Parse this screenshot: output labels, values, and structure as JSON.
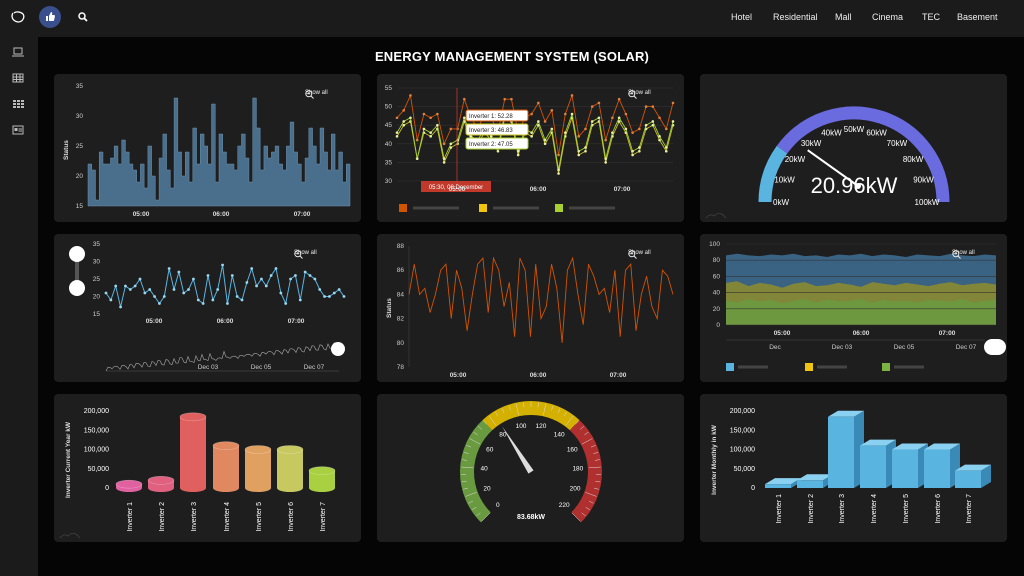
{
  "header": {
    "nav": [
      "Hotel",
      "Residential",
      "Mall",
      "Cinema",
      "TEC",
      "Basement"
    ]
  },
  "page_title": "ENERGY MANAGEMENT SYSTEM (SOLAR)",
  "show_all_label": "Show all",
  "colors": {
    "area_blue": "#4a6f8c",
    "line_orange": "#d35400",
    "inv_yellow": "#c8c020",
    "inv_green": "#a8d030",
    "gauge_blue": "#6b6be0",
    "gauge_lightblue": "#5ab4e0",
    "cyl_blue": "#5ab4e0"
  },
  "chart_data": [
    {
      "id": "status-area",
      "type": "area",
      "ylabel": "Status",
      "yticks": [
        "35",
        "30",
        "25",
        "20",
        "15"
      ],
      "ylim": [
        15,
        35
      ],
      "xticks": [
        "05:00",
        "06:00",
        "07:00"
      ],
      "values": [
        22,
        21,
        16,
        24,
        22,
        22,
        23,
        25,
        22,
        26,
        24,
        22,
        21,
        19,
        22,
        18,
        25,
        20,
        16,
        23,
        27,
        21,
        18,
        33,
        24,
        20,
        24,
        19,
        28,
        22,
        27,
        25,
        22,
        32,
        19,
        27,
        24,
        22,
        22,
        21,
        25,
        27,
        23,
        19,
        33,
        28,
        21,
        25,
        23,
        24,
        25,
        22,
        21,
        25,
        29,
        24,
        22,
        19,
        23,
        28,
        25,
        22,
        28,
        24,
        21,
        27,
        21,
        24,
        19,
        22
      ]
    },
    {
      "id": "inverters-line",
      "type": "line",
      "yticks": [
        "55",
        "50",
        "45",
        "40",
        "35",
        "30"
      ],
      "ylim": [
        30,
        55
      ],
      "xticks": [
        "05:00",
        "06:00",
        "07:00"
      ],
      "tooltip_time": "05:30, 08 December",
      "tooltips": [
        "Inverter 1: 52.28",
        "Inverter 3: 46.83",
        "Inverter 2: 47.05"
      ],
      "series": [
        {
          "values": [
            47,
            49,
            53,
            41,
            48,
            47,
            48,
            40,
            44,
            44,
            52,
            47,
            44,
            48,
            47,
            43,
            52,
            52,
            43,
            47,
            48,
            51,
            46,
            49,
            37,
            48,
            53,
            42,
            44,
            50,
            51,
            41,
            47,
            52,
            48,
            43,
            44,
            50,
            50,
            47,
            44,
            51
          ]
        },
        {
          "values": [
            42,
            45,
            46,
            36,
            43,
            42,
            44,
            35,
            39,
            40,
            46,
            41,
            40,
            43,
            41,
            38,
            47,
            46,
            37,
            43,
            42,
            45,
            40,
            43,
            32,
            42,
            47,
            37,
            38,
            45,
            46,
            35,
            42,
            46,
            43,
            37,
            38,
            44,
            45,
            41,
            38,
            45
          ]
        },
        {
          "values": [
            43,
            46,
            47,
            36,
            44,
            43,
            45,
            36,
            40,
            41,
            47,
            42,
            41,
            44,
            42,
            39,
            48,
            47,
            38,
            44,
            43,
            46,
            41,
            44,
            33,
            43,
            48,
            38,
            39,
            46,
            47,
            36,
            43,
            47,
            44,
            38,
            39,
            45,
            46,
            42,
            39,
            46
          ]
        }
      ]
    },
    {
      "id": "kw-gauge",
      "type": "gauge",
      "value": 20.96,
      "value_label": "20.96kW",
      "ticks": [
        "0kW",
        "10kW",
        "20kW",
        "30kW",
        "40kW",
        "50kW",
        "60kW",
        "70kW",
        "80kW",
        "90kW",
        "100kW"
      ]
    },
    {
      "id": "navigator-line",
      "type": "line",
      "yticks": [
        "35",
        "30",
        "25",
        "20",
        "15"
      ],
      "ylim": [
        15,
        35
      ],
      "xticks": [
        "05:00",
        "06:00",
        "07:00"
      ],
      "navigator_ticks": [
        "Dec 03",
        "Dec 05",
        "Dec 07"
      ],
      "values": [
        21,
        19,
        23,
        17,
        23,
        22,
        23,
        25,
        21,
        22,
        20,
        18,
        20,
        28,
        22,
        27,
        21,
        22,
        25,
        19,
        18,
        26,
        19,
        22,
        29,
        18,
        26,
        20,
        19,
        24,
        28,
        23,
        25,
        23,
        26,
        28,
        21,
        18,
        25,
        26,
        19,
        27,
        26,
        25,
        22,
        20,
        20,
        21,
        22,
        20
      ]
    },
    {
      "id": "status-line",
      "type": "line",
      "ylabel": "Status",
      "yticks": [
        "88",
        "86",
        "84",
        "82",
        "80",
        "78"
      ],
      "ylim": [
        78,
        88
      ],
      "xticks": [
        "05:00",
        "06:00",
        "07:00"
      ],
      "values": [
        84,
        86.5,
        84,
        84.5,
        82.5,
        84,
        86,
        86.5,
        82,
        86,
        84.5,
        81,
        84,
        86.5,
        87,
        82.5,
        87,
        86,
        83,
        85,
        80.5,
        87,
        86,
        80.5,
        86.5,
        82,
        83,
        86.5,
        84.5,
        80,
        86,
        87,
        84,
        81.5,
        86.5,
        85.5,
        84,
        84.5,
        82.5,
        86,
        80.5,
        86,
        86.5,
        81,
        84,
        85.5,
        83,
        82,
        86,
        85.5,
        84
      ]
    },
    {
      "id": "stacked-area",
      "type": "area",
      "yticks": [
        "100",
        "80",
        "60",
        "40",
        "20",
        "0"
      ],
      "ylim": [
        0,
        100
      ],
      "xticks": [
        "05:00",
        "06:00",
        "07:00"
      ],
      "navigator_ticks": [
        "Dec",
        "Dec 03",
        "Dec 05",
        "Dec 07"
      ],
      "series": [
        {
          "values": [
            86,
            88,
            86,
            85,
            87,
            86,
            88,
            85,
            86,
            84,
            87,
            86,
            88,
            85,
            87,
            86,
            84,
            87,
            86,
            85,
            88,
            86,
            85,
            87,
            86
          ]
        },
        {
          "values": [
            52,
            54,
            48,
            52,
            50,
            46,
            51,
            53,
            48,
            49,
            52,
            50,
            47,
            53,
            51,
            49,
            52,
            50,
            48,
            51,
            53,
            49,
            51,
            52,
            50
          ]
        },
        {
          "values": [
            30,
            28,
            32,
            29,
            31,
            27,
            30,
            32,
            28,
            31,
            29,
            30,
            32,
            28,
            31,
            29,
            30,
            28,
            31,
            30,
            29,
            32,
            28,
            30,
            31
          ]
        }
      ]
    },
    {
      "id": "inverter-year-bars",
      "type": "bar",
      "ylabel": "Inverter Current Year kW",
      "yticks": [
        "200,000",
        "150,000",
        "100,000",
        "50,000",
        "0"
      ],
      "ylim": [
        0,
        200000
      ],
      "categories": [
        "Inverter 1",
        "Inverter 2",
        "Inverter 3",
        "Inverter 4",
        "Inverter 5",
        "Inverter 6",
        "Inverter 7"
      ],
      "values": [
        10000,
        20000,
        185000,
        110000,
        100000,
        100000,
        45000
      ],
      "colors": [
        "#e060a0",
        "#e06080",
        "#e06060",
        "#e08860",
        "#e0a060",
        "#c8c860",
        "#a8d040"
      ]
    },
    {
      "id": "speed-gauge",
      "type": "gauge",
      "value": 83.68,
      "value_label": "83.68kW",
      "ticks": [
        "0",
        "20",
        "40",
        "60",
        "80",
        "100",
        "120",
        "140",
        "160",
        "180",
        "200",
        "220"
      ]
    },
    {
      "id": "inverter-month-bars",
      "type": "bar",
      "ylabel": "Inverter Monthly in kW",
      "yticks": [
        "200,000",
        "150,000",
        "100,000",
        "50,000",
        "0"
      ],
      "ylim": [
        0,
        200000
      ],
      "categories": [
        "Inverter 1",
        "Inverter 2",
        "Inverter 3",
        "Inverter 4",
        "Inverter 5",
        "Inverter 6",
        "Inverter 7"
      ],
      "values": [
        10000,
        20000,
        185000,
        110000,
        100000,
        100000,
        45000
      ]
    }
  ]
}
